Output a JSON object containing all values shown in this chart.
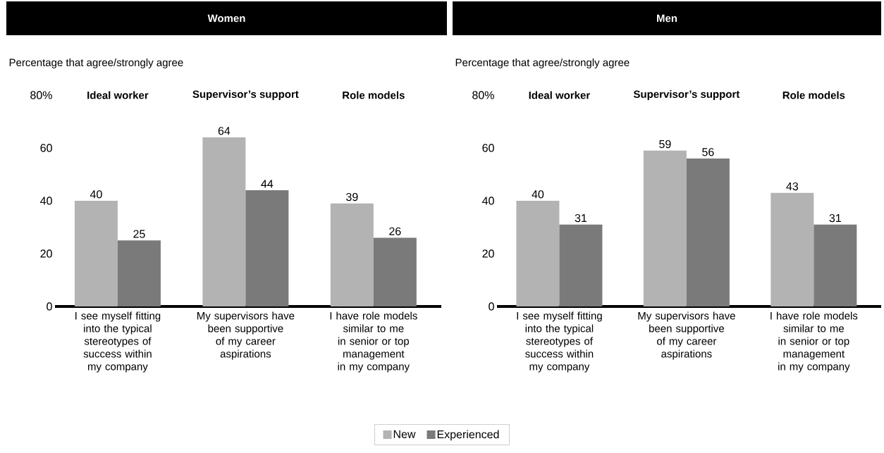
{
  "chart_data": [
    {
      "type": "bar",
      "title": "Women",
      "subtitle": "Percentage that agree/strongly agree",
      "categories": [
        "I see myself fitting into the typical stereotypes of success within my company",
        "My supervisors have been supportive of my career aspirations",
        "I have role models similar to me in senior or top management in my company"
      ],
      "series": [
        {
          "name": "New",
          "color": "#b3b3b3",
          "values": [
            40,
            64,
            39
          ]
        },
        {
          "name": "Experienced",
          "color": "#7a7a7a",
          "values": [
            25,
            44,
            26
          ]
        }
      ],
      "ylim": [
        0,
        80
      ],
      "yticks": [
        0,
        20,
        40,
        60,
        {
          "value": 80,
          "label": "80%"
        }
      ],
      "data_labels": true,
      "legend": "bottom",
      "annotations": [
        "Ideal worker",
        "Supervisor’s support",
        "Role models"
      ]
    },
    {
      "type": "bar",
      "title": "Men",
      "subtitle": "Percentage that agree/strongly agree",
      "categories": [
        "I see myself fitting into the typical stereotypes of success within my company",
        "My supervisors have been supportive of my career aspirations",
        "I have role models similar to me in senior or top management in my company"
      ],
      "series": [
        {
          "color": "#b3b3b3",
          "values": [
            40,
            59,
            43
          ]
        },
        {
          "color": "#7a7a7a",
          "values": [
            31,
            56,
            31
          ]
        }
      ],
      "ylim": [
        0,
        80
      ],
      "yticks": [
        0,
        20,
        40,
        60,
        {
          "value": 80,
          "label": "80%"
        }
      ],
      "data_labels": true,
      "annotations": [
        "Ideal worker",
        "Supervisor’s support",
        "Role models"
      ]
    }
  ]
}
